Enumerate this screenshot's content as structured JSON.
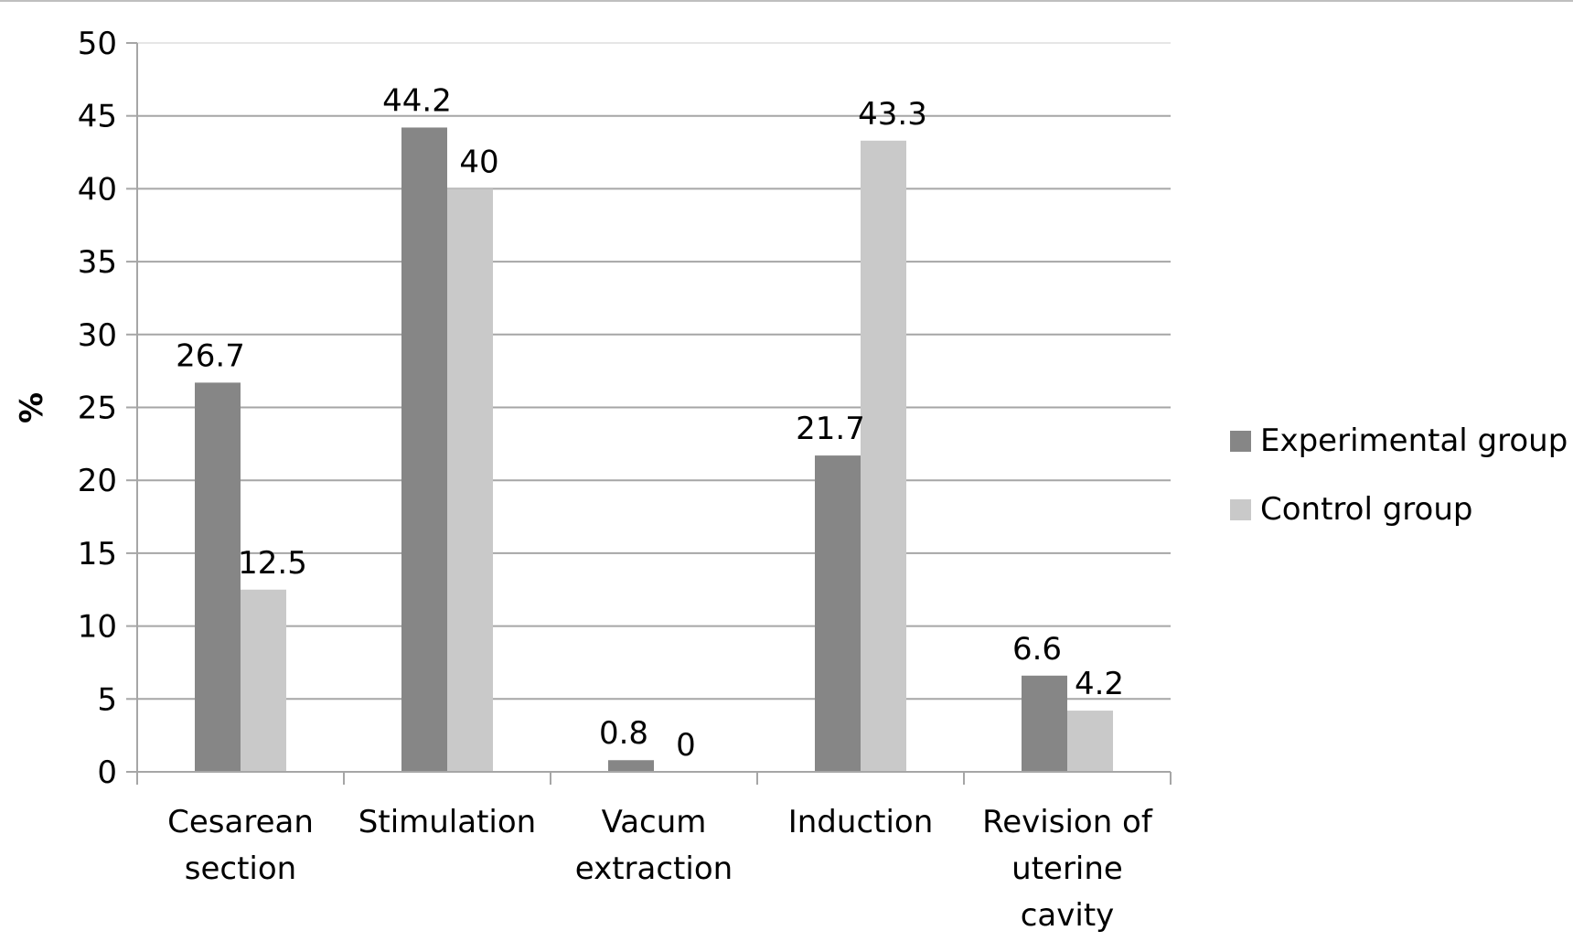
{
  "chart_data": {
    "type": "bar",
    "title": "",
    "xlabel": "",
    "ylabel": "%",
    "ylim": [
      0,
      50
    ],
    "y_ticks": [
      "0",
      "5",
      "10",
      "15",
      "20",
      "25",
      "30",
      "35",
      "40",
      "45",
      "50"
    ],
    "grid": true,
    "legend_position": "right",
    "categories": [
      [
        "Cesarean",
        "section"
      ],
      [
        "Stimulation"
      ],
      [
        "Vacum",
        "extraction"
      ],
      [
        "Induction"
      ],
      [
        "Revision of",
        "uterine",
        "cavity"
      ]
    ],
    "series": [
      {
        "name": "Experimental group",
        "color": "#868686",
        "values": [
          26.7,
          44.2,
          0.8,
          21.7,
          6.6
        ],
        "labels": [
          "26.7",
          "44.2",
          "0.8",
          "21.7",
          "6.6"
        ]
      },
      {
        "name": "Control group",
        "color": "#c9c9c9",
        "values": [
          12.5,
          40,
          0,
          43.3,
          4.2
        ],
        "labels": [
          "12.5",
          "40",
          "0",
          "43.3",
          "4.2"
        ]
      }
    ],
    "colors": {
      "gridline": "#a6a6a6",
      "axis": "#a6a6a6"
    }
  }
}
